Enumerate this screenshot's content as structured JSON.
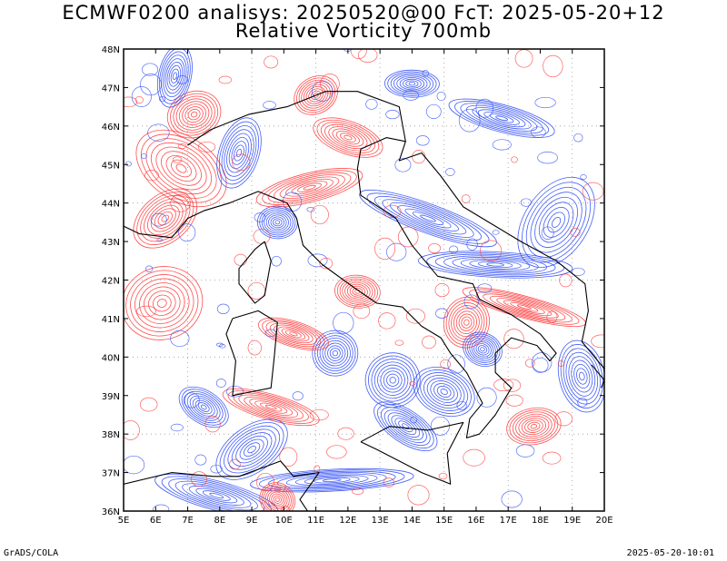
{
  "title": {
    "line1": "ECMWF0200 analisys: 20250520@00 FcT: 2025-05-20+12",
    "line2": "Relative Vorticity 700mb"
  },
  "map": {
    "lon_labels": [
      "5E",
      "6E",
      "7E",
      "8E",
      "9E",
      "10E",
      "11E",
      "12E",
      "13E",
      "14E",
      "15E",
      "16E",
      "17E",
      "18E",
      "19E",
      "20E"
    ],
    "lat_labels": [
      "48N",
      "47N",
      "46N",
      "45N",
      "44N",
      "43N",
      "42N",
      "41N",
      "40N",
      "39N",
      "38N",
      "37N",
      "36N"
    ],
    "lon_range": [
      5,
      20
    ],
    "lat_range": [
      36,
      48
    ],
    "colors": {
      "positive": "#ff3b3b",
      "negative": "#2f4df5",
      "coastline": "#000000",
      "grid": "#9a9a9a"
    }
  },
  "footer": {
    "left": "GrADS/COLA",
    "right": "2025-05-20-10:01"
  }
}
